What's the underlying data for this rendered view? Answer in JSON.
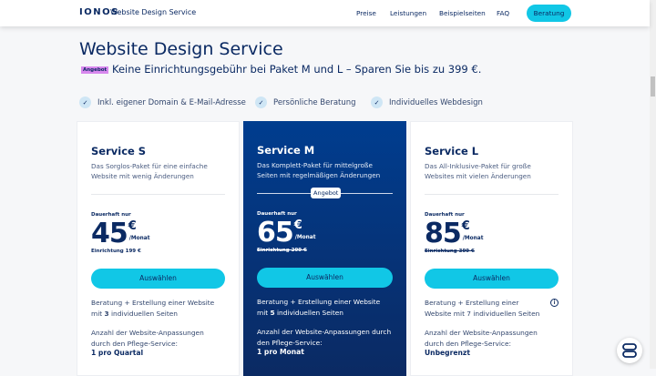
{
  "header": {
    "logo": "IONOS",
    "brand": "Website Design Service",
    "nav": [
      "Preise",
      "Leistungen",
      "Beispielseiten",
      "FAQ"
    ],
    "cta": "Beratung"
  },
  "page": {
    "title": "Website Design Service",
    "badge": "Angebot",
    "promo": "Keine Einrichtungsgebühr bei Paket M und L – Sparen Sie bis zu 399 €."
  },
  "features": [
    "Inkl. eigener Domain & E-Mail-Adresse",
    "Persönliche Beratung",
    "Individuelles Webdesign"
  ],
  "plans": [
    {
      "name": "Service S",
      "desc": "Das Sorglos-Paket für eine einfache Website mit wenig Änderungen",
      "label": "Dauerhaft nur",
      "price": "45",
      "currency": "€",
      "period": "/Monat",
      "setup": "Einrichtung 199 €",
      "setup_struck": false,
      "button": "Auswählen",
      "scope_pre": "Beratung + Erstellung einer Website mit ",
      "scope_bold": "3",
      "scope_post": " individuellen Seiten",
      "changes_label": "Anzahl der Website-Anpassungen durch den Pflege-Service:",
      "changes_value": "1 pro Quartal"
    },
    {
      "name": "Service M",
      "desc": "Das Komplett-Paket für mittelgroße Seiten mit regelmäßigen Änderungen",
      "offer": "Angebot",
      "label": "Dauerhaft nur",
      "price": "65",
      "currency": "€",
      "period": "/Monat",
      "setup": "Einrichtung 299 €",
      "setup_struck": true,
      "button": "Auswählen",
      "scope_pre": "Beratung + Erstellung einer Website mit ",
      "scope_bold": "5",
      "scope_post": " individuellen Seiten",
      "changes_label": "Anzahl der Website-Anpassungen durch den Pflege-Service:",
      "changes_value": "1 pro Monat"
    },
    {
      "name": "Service L",
      "desc": "Das All-Inklusive-Paket für große Websites mit vielen Änderungen",
      "label": "Dauerhaft nur",
      "price": "85",
      "currency": "€",
      "period": "/Monat",
      "setup": "Einrichtung 399 €",
      "setup_struck": true,
      "button": "Auswählen",
      "scope_pre": "Beratung + Erstellung einer Website mit 7 individuellen Seiten",
      "scope_bold": "",
      "scope_post": "",
      "changes_label": "Anzahl der Website-Anpassungen durch den Pflege-Service:",
      "changes_value": "Unbegrenzt"
    }
  ],
  "colors": {
    "primary": "#0b2a63",
    "accent": "#11c7e6",
    "badge": "#d888ee"
  }
}
